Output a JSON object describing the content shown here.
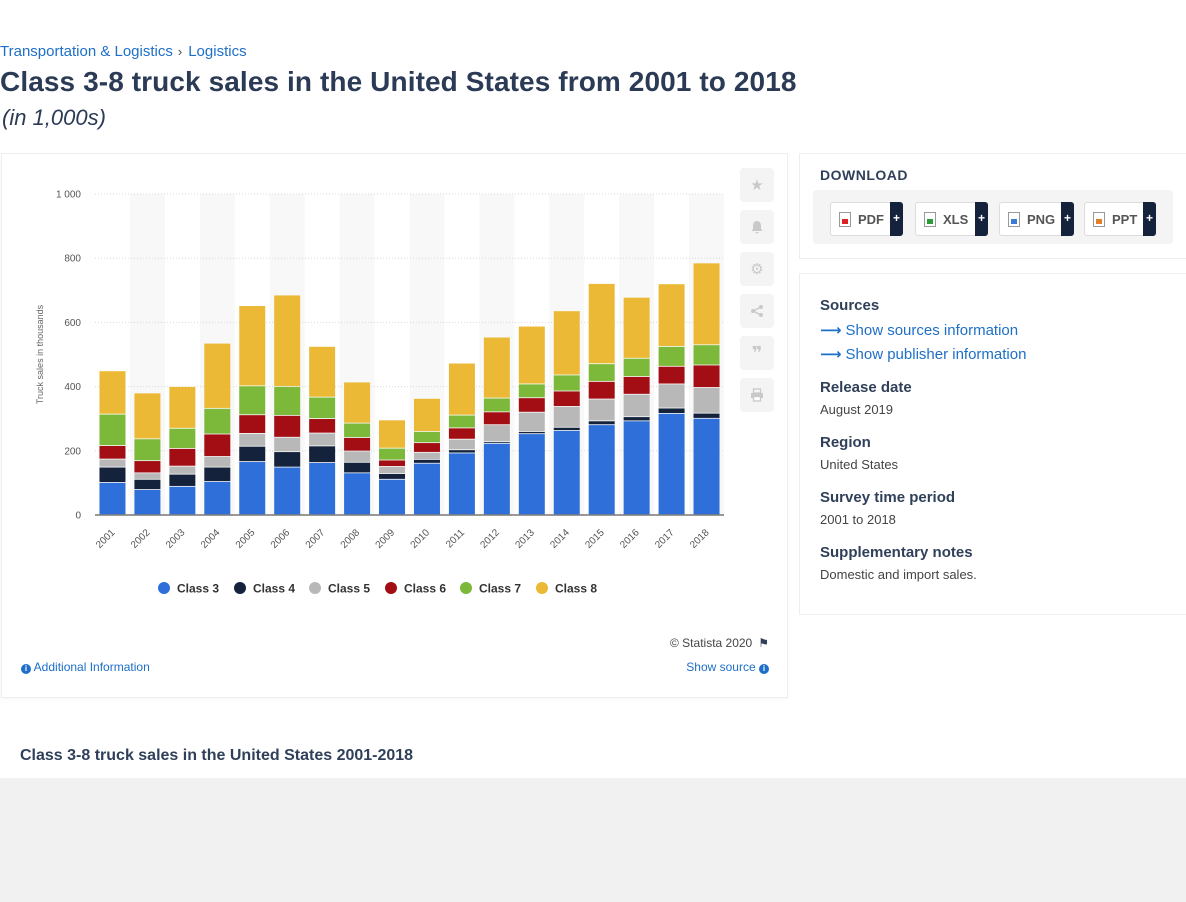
{
  "breadcrumb": {
    "items": [
      "Transportation & Logistics",
      "Logistics"
    ],
    "separator": "›"
  },
  "title": "Class 3-8 truck sales in the United States from 2001 to 2018",
  "subtitle": "(in 1,000s)",
  "chart_tools": [
    "star-icon",
    "bell-icon",
    "gear-icon",
    "share-icon",
    "quote-icon",
    "print-icon"
  ],
  "chart_footer": {
    "copyright": "© Statista 2020",
    "additional_info": "Additional Information",
    "show_source": "Show source"
  },
  "download": {
    "title": "DOWNLOAD",
    "formats": [
      {
        "label": "PDF",
        "icon": "pdf-file-icon"
      },
      {
        "label": "XLS",
        "icon": "xls-file-icon"
      },
      {
        "label": "PNG",
        "icon": "png-file-icon"
      },
      {
        "label": "PPT",
        "icon": "ppt-file-icon"
      }
    ],
    "plus": "+"
  },
  "meta": {
    "sources_heading": "Sources",
    "show_sources": "Show sources information",
    "show_publisher": "Show publisher information",
    "release_heading": "Release date",
    "release_value": "August 2019",
    "region_heading": "Region",
    "region_value": "United States",
    "survey_heading": "Survey time period",
    "survey_value": "2001 to 2018",
    "notes_heading": "Supplementary notes",
    "notes_value": "Domestic and import sales."
  },
  "bottom_title": "Class 3-8 truck sales in the United States 2001-2018",
  "colors": {
    "class3": "#2f6fd9",
    "class4": "#14233b",
    "class5": "#b8b8b8",
    "class6": "#a30d14",
    "class7": "#7cb93a",
    "class8": "#ebb936",
    "link": "#1d6fc7"
  },
  "chart_data": {
    "type": "bar",
    "stacked": true,
    "categories": [
      "2001",
      "2002",
      "2003",
      "2004",
      "2005",
      "2006",
      "2007",
      "2008",
      "2009",
      "2010",
      "2011",
      "2012",
      "2013",
      "2014",
      "2015",
      "2016",
      "2017",
      "2018"
    ],
    "ylabel": "Truck sales in thousands",
    "ylim": [
      0,
      1000
    ],
    "yticks": [
      0,
      200,
      400,
      600,
      800,
      1000
    ],
    "ytick_labels": [
      "0",
      "200",
      "400",
      "600",
      "800",
      "1 000"
    ],
    "grid": true,
    "legend_position": "bottom",
    "series": [
      {
        "name": "Class 3",
        "color": "#2f6fd9",
        "values": [
          100,
          78,
          88,
          103,
          165,
          148,
          162,
          130,
          110,
          160,
          192,
          222,
          252,
          262,
          280,
          292,
          315,
          300
        ]
      },
      {
        "name": "Class 4",
        "color": "#14233b",
        "values": [
          48,
          32,
          38,
          45,
          48,
          48,
          52,
          33,
          18,
          12,
          10,
          5,
          7,
          10,
          12,
          13,
          17,
          16
        ]
      },
      {
        "name": "Class 5",
        "color": "#b8b8b8",
        "values": [
          25,
          20,
          25,
          33,
          40,
          45,
          40,
          35,
          22,
          22,
          33,
          53,
          60,
          65,
          68,
          70,
          75,
          80
        ]
      },
      {
        "name": "Class 6",
        "color": "#a30d14",
        "values": [
          42,
          38,
          55,
          70,
          58,
          68,
          45,
          42,
          20,
          30,
          35,
          40,
          45,
          48,
          55,
          55,
          55,
          70
        ]
      },
      {
        "name": "Class 7",
        "color": "#7cb93a",
        "values": [
          98,
          68,
          63,
          80,
          90,
          90,
          67,
          45,
          37,
          35,
          40,
          43,
          43,
          50,
          55,
          57,
          62,
          63
        ]
      },
      {
        "name": "Class 8",
        "color": "#ebb936",
        "values": [
          135,
          143,
          130,
          203,
          250,
          285,
          158,
          128,
          88,
          103,
          162,
          190,
          180,
          200,
          250,
          190,
          195,
          255
        ]
      }
    ]
  }
}
